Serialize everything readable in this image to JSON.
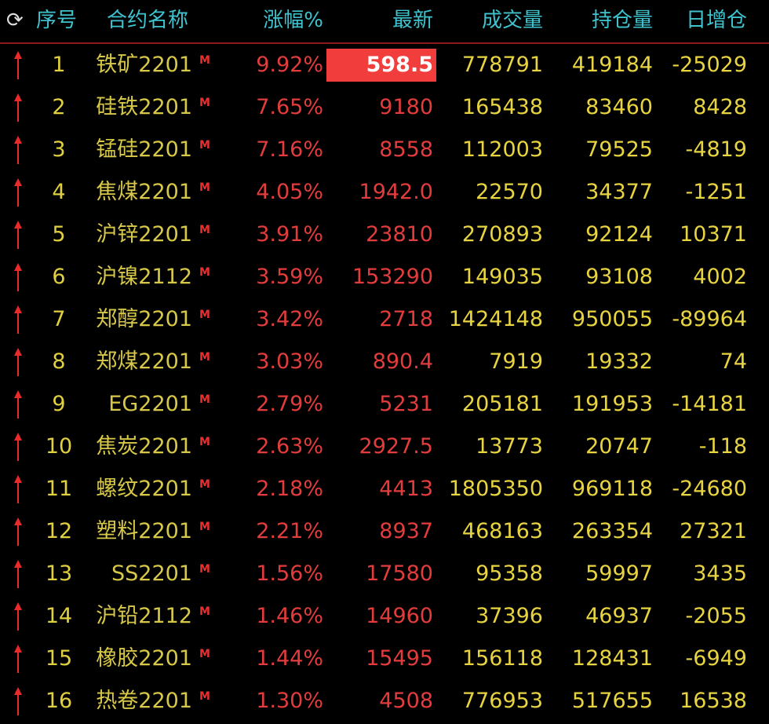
{
  "header": {
    "refresh_icon": "refresh-icon",
    "cols": [
      "序号",
      "合约名称",
      "涨幅%",
      "最新",
      "成交量",
      "持仓量",
      "日增仓"
    ]
  },
  "colors": {
    "header": "#3fc3cf",
    "up": "#e23c3c",
    "value": "#e8d440",
    "highlight": "#f23d3d"
  },
  "rows": [
    {
      "idx": "1",
      "name": "铁矿2201",
      "tag": "M",
      "pct": "9.92%",
      "last": "598.5",
      "vol": "778791",
      "oi": "419184",
      "chg": "-25029",
      "highlight": true
    },
    {
      "idx": "2",
      "name": "硅铁2201",
      "tag": "M",
      "pct": "7.65%",
      "last": "9180",
      "vol": "165438",
      "oi": "83460",
      "chg": "8428"
    },
    {
      "idx": "3",
      "name": "锰硅2201",
      "tag": "M",
      "pct": "7.16%",
      "last": "8558",
      "vol": "112003",
      "oi": "79525",
      "chg": "-4819"
    },
    {
      "idx": "4",
      "name": "焦煤2201",
      "tag": "M",
      "pct": "4.05%",
      "last": "1942.0",
      "vol": "22570",
      "oi": "34377",
      "chg": "-1251"
    },
    {
      "idx": "5",
      "name": "沪锌2201",
      "tag": "M",
      "pct": "3.91%",
      "last": "23810",
      "vol": "270893",
      "oi": "92124",
      "chg": "10371"
    },
    {
      "idx": "6",
      "name": "沪镍2112",
      "tag": "M",
      "pct": "3.59%",
      "last": "153290",
      "vol": "149035",
      "oi": "93108",
      "chg": "4002"
    },
    {
      "idx": "7",
      "name": "郑醇2201",
      "tag": "M",
      "pct": "3.42%",
      "last": "2718",
      "vol": "1424148",
      "oi": "950055",
      "chg": "-89964"
    },
    {
      "idx": "8",
      "name": "郑煤2201",
      "tag": "M",
      "pct": "3.03%",
      "last": "890.4",
      "vol": "7919",
      "oi": "19332",
      "chg": "74"
    },
    {
      "idx": "9",
      "name": "EG2201",
      "tag": "M",
      "pct": "2.79%",
      "last": "5231",
      "vol": "205181",
      "oi": "191953",
      "chg": "-14181"
    },
    {
      "idx": "10",
      "name": "焦炭2201",
      "tag": "M",
      "pct": "2.63%",
      "last": "2927.5",
      "vol": "13773",
      "oi": "20747",
      "chg": "-118"
    },
    {
      "idx": "11",
      "name": "螺纹2201",
      "tag": "M",
      "pct": "2.18%",
      "last": "4413",
      "vol": "1805350",
      "oi": "969118",
      "chg": "-24680"
    },
    {
      "idx": "12",
      "name": "塑料2201",
      "tag": "M",
      "pct": "2.21%",
      "last": "8937",
      "vol": "468163",
      "oi": "263354",
      "chg": "27321"
    },
    {
      "idx": "13",
      "name": "SS2201",
      "tag": "M",
      "pct": "1.56%",
      "last": "17580",
      "vol": "95358",
      "oi": "59997",
      "chg": "3435"
    },
    {
      "idx": "14",
      "name": "沪铅2112",
      "tag": "M",
      "pct": "1.46%",
      "last": "14960",
      "vol": "37396",
      "oi": "46937",
      "chg": "-2055"
    },
    {
      "idx": "15",
      "name": "橡胶2201",
      "tag": "M",
      "pct": "1.44%",
      "last": "15495",
      "vol": "156118",
      "oi": "128431",
      "chg": "-6949"
    },
    {
      "idx": "16",
      "name": "热卷2201",
      "tag": "M",
      "pct": "1.30%",
      "last": "4508",
      "vol": "776953",
      "oi": "517655",
      "chg": "16538"
    }
  ]
}
